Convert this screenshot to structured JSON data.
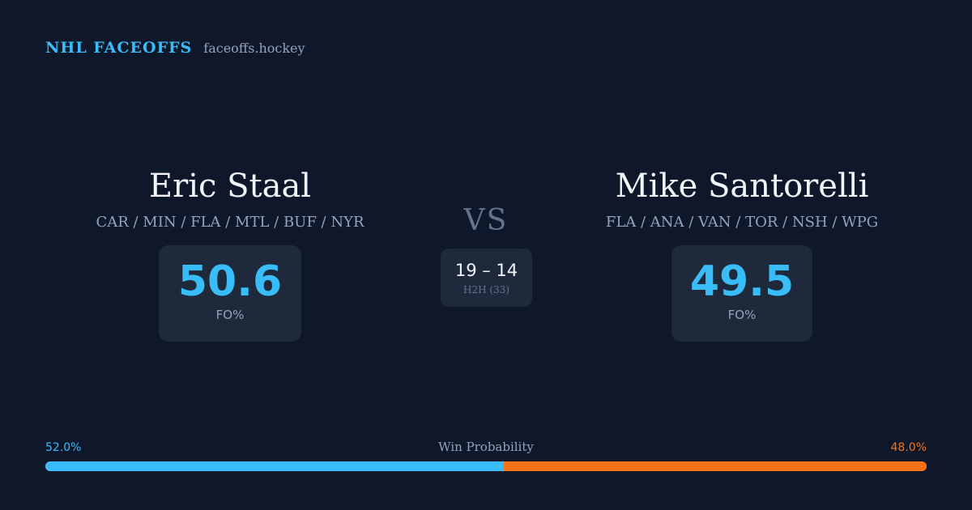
{
  "brand": {
    "name": "NHL FACEOFFS",
    "url": "faceoffs.hockey"
  },
  "player_left": {
    "name": "Eric Staal",
    "teams": "CAR / MIN / FLA / MTL / BUF / NYR",
    "stat_value": "50.6",
    "stat_label": "FO%"
  },
  "player_right": {
    "name": "Mike Santorelli",
    "teams": "FLA / ANA / VAN / TOR / NSH / WPG",
    "stat_value": "49.5",
    "stat_label": "FO%"
  },
  "versus": {
    "label": "VS",
    "h2h_score": "19 – 14",
    "h2h_label": "H2H (33)"
  },
  "win_probability": {
    "title": "Win Probability",
    "left_label": "52.0%",
    "right_label": "48.0%",
    "left_fraction": 0.52,
    "right_fraction": 0.48
  },
  "colors": {
    "background": "#0f172a",
    "accent_left": "#38bdf8",
    "accent_right": "#f97316",
    "card": "#1e293b"
  }
}
